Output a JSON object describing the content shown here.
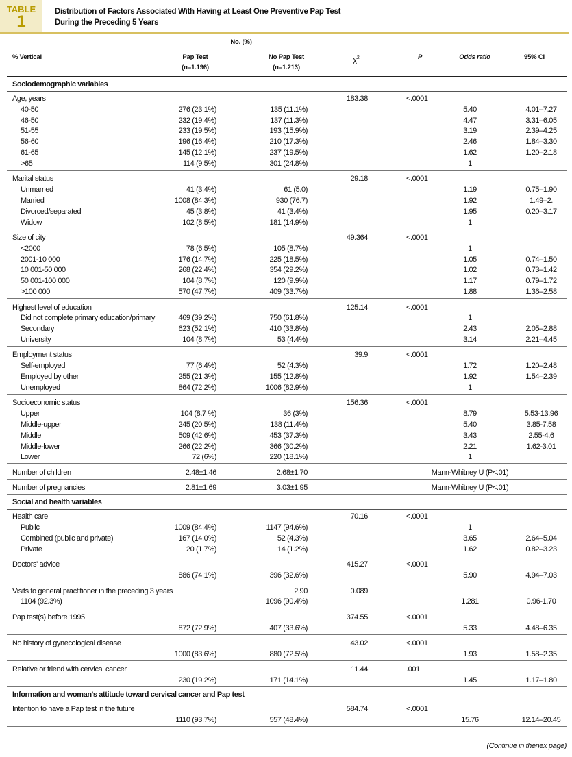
{
  "header": {
    "table_label": "TABLE",
    "table_number": "1",
    "title": [
      "Distribution of Factors Associated With Having at Least One Preventive Pap Test",
      "During the Preceding 5 Years"
    ]
  },
  "table": {
    "columns": {
      "group": "No. (%)",
      "variable": "% Vertical",
      "pap": [
        "Pap Test",
        "(n=1.196)"
      ],
      "nopap": [
        "No Pap Test",
        "(n=1.213)"
      ],
      "chi": "χ",
      "chi_sup": "2",
      "p": "P",
      "or": "Odds ratio",
      "ci": "95% CI"
    },
    "blocks": [
      {
        "section": "Sociodemographic variables"
      },
      {
        "rows": [
          [
            "Age, years",
            null,
            null,
            "183.38",
            "<.0001",
            null,
            null
          ],
          [
            "40-50",
            "276 (23.1%)",
            "135 (11.1%)",
            null,
            null,
            "5.40",
            "4.01–7.27"
          ],
          [
            "46-50",
            "232 (19.4%)",
            "137 (11.3%)",
            null,
            null,
            "4.47",
            "3.31–6.05"
          ],
          [
            "51-55",
            "233 (19.5%)",
            "193 (15.9%)",
            null,
            null,
            "3.19",
            "2.39–4.25"
          ],
          [
            "56-60",
            "196 (16.4%)",
            "210 (17.3%)",
            null,
            null,
            "2.46",
            "1.84–3.30"
          ],
          [
            "61-65",
            "145 (12.1%)",
            "237 (19.5%)",
            null,
            null,
            "1.62",
            "1.20–2.18"
          ],
          [
            ">65",
            "114 (9.5%)",
            "301 (24.8%)",
            null,
            null,
            "1",
            null
          ]
        ]
      },
      {
        "rows": [
          [
            "Marital status",
            null,
            null,
            "29.18",
            "<.0001",
            null,
            null
          ],
          [
            "Unmarried",
            "41 (3.4%)",
            "61 (5.0)",
            null,
            null,
            "1.19",
            "0.75–1.90"
          ],
          [
            "Married",
            "1008 (84.3%)",
            "930 (76.7)",
            null,
            null,
            "1.92",
            "1.49–2."
          ],
          [
            "Divorced/separated",
            "45 (3.8%)",
            "41 (3.4%)",
            null,
            null,
            "1.95",
            "0.20–3.17"
          ],
          [
            "Widow",
            "102 (8.5%)",
            "181 (14.9%)",
            null,
            null,
            "1",
            null
          ]
        ]
      },
      {
        "rows": [
          [
            "Size of city",
            null,
            null,
            "49.364",
            "<.0001",
            null,
            null
          ],
          [
            "<2000",
            "78 (6.5%)",
            "105 (8.7%)",
            null,
            null,
            "1",
            null
          ],
          [
            "2001-10 000",
            "176 (14.7%)",
            "225 (18.5%)",
            null,
            null,
            "1.05",
            "0.74–1.50"
          ],
          [
            "10 001-50 000",
            "268 (22.4%)",
            "354 (29.2%)",
            null,
            null,
            "1.02",
            "0.73–1.42"
          ],
          [
            "50 001-100 000",
            "104 (8.7%)",
            "120 (9.9%)",
            null,
            null,
            "1.17",
            "0.79–1.72"
          ],
          [
            ">100 000",
            "570 (47.7%)",
            "409 (33.7%)",
            null,
            null,
            "1.88",
            "1.36–2.58"
          ]
        ]
      },
      {
        "rows": [
          [
            "Highest level of education",
            null,
            null,
            "125.14",
            "<.0001",
            null,
            null
          ],
          [
            "Did not complete primary education/primary",
            "469 (39.2%)",
            "750 (61.8%)",
            null,
            null,
            "1",
            null
          ],
          [
            "Secondary",
            "623 (52.1%)",
            "410 (33.8%)",
            null,
            null,
            "2.43",
            "2.05–2.88"
          ],
          [
            "University",
            "104 (8.7%)",
            "53 (4.4%)",
            null,
            null,
            "3.14",
            "2.21–4.45"
          ]
        ]
      },
      {
        "rows": [
          [
            "Employment status",
            null,
            null,
            "39.9",
            "<.0001",
            null,
            null
          ],
          [
            "Self-employed",
            "77 (6.4%)",
            "52 (4.3%)",
            null,
            null,
            "1.72",
            "1.20–2.48"
          ],
          [
            "Employed by other",
            "255 (21.3%)",
            "155 (12.8%)",
            null,
            null,
            "1.92",
            "1.54–2.39"
          ],
          [
            "Unemployed",
            "864 (72.2%)",
            "1006 (82.9%)",
            null,
            null,
            "1",
            null
          ]
        ]
      },
      {
        "rows": [
          [
            "Socioeconomic status",
            null,
            null,
            "156.36",
            "<.0001",
            null,
            null
          ],
          [
            "Upper",
            "104 (8.7 %)",
            "36 (3%)",
            null,
            null,
            "8.79",
            "5.53-13.96"
          ],
          [
            "Middle-upper",
            "245 (20.5%)",
            "138 (11.4%)",
            null,
            null,
            "5.40",
            "3.85-7.58"
          ],
          [
            "Middle",
            "509 (42.6%)",
            "453 (37.3%)",
            null,
            null,
            "3.43",
            "2.55-4.6"
          ],
          [
            "Middle-lower",
            "266 (22.2%)",
            "366 (30.2%)",
            null,
            null,
            "2.21",
            "1.62-3.01"
          ],
          [
            "Lower",
            "72 (6%)",
            "220 (18.1%)",
            null,
            null,
            "1",
            null
          ]
        ]
      },
      {
        "rows": [
          [
            "Number of children",
            "2.48±1.46",
            "2.68±1.70",
            null,
            null,
            "Mann-Whitney U (P<.01)",
            null
          ]
        ]
      },
      {
        "rows": [
          [
            "Number of pregnancies",
            "2.81±1.69",
            "3.03±1.95",
            null,
            null,
            "Mann-Whitney U (P<.01)",
            null
          ]
        ]
      },
      {
        "section": "Social and health variables"
      },
      {
        "rows": [
          [
            "Health care",
            null,
            null,
            "70.16",
            "<.0001",
            null,
            null
          ],
          [
            "Public",
            "1009 (84.4%)",
            "1147 (94.6%)",
            null,
            null,
            "1",
            null
          ],
          [
            "Combined (public and private)",
            "167 (14.0%)",
            "52 (4.3%)",
            null,
            null,
            "3.65",
            "2.64–5.04"
          ],
          [
            "Private",
            "20 (1.7%)",
            "14 (1.2%)",
            null,
            null,
            "1.62",
            "0.82–3.23"
          ]
        ]
      },
      {
        "rows": [
          [
            "Doctors' advice",
            null,
            null,
            "415.27",
            "<.0001",
            null,
            null
          ],
          [
            null,
            "886 (74.1%)",
            "396 (32.6%)",
            null,
            null,
            "5.90",
            "4.94–7.03"
          ]
        ]
      },
      {
        "rows": [
          [
            "Visits to general practitioner in the preceding 3 years",
            null,
            "2.90",
            "0.089",
            null,
            null,
            null
          ],
          [
            "1104 (92.3%)",
            null,
            "1096 (90.4%)",
            null,
            null,
            "1.281",
            "0.96-1.70"
          ]
        ]
      },
      {
        "rows": [
          [
            "Pap test(s) before 1995",
            null,
            null,
            "374.55",
            "<.0001",
            null,
            null
          ],
          [
            null,
            "872 (72.9%)",
            "407 (33.6%)",
            null,
            null,
            "5.33",
            "4.48–6.35"
          ]
        ]
      },
      {
        "rows": [
          [
            "No history of gynecological disease",
            null,
            null,
            "43.02",
            "<.0001",
            null,
            null
          ],
          [
            null,
            "1000 (83.6%)",
            "880 (72.5%)",
            null,
            null,
            "1.93",
            "1.58–2.35"
          ]
        ]
      },
      {
        "rows": [
          [
            "Relative or friend with cervical cancer",
            null,
            null,
            "11.44",
            ".001",
            null,
            null
          ],
          [
            null,
            "230 (19.2%)",
            "171 (14.1%)",
            null,
            null,
            "1.45",
            "1.17–1.80"
          ]
        ]
      },
      {
        "section": "Information and woman's attitude toward cervical cancer and Pap test"
      },
      {
        "rows": [
          [
            "Intention to have a Pap test in the future",
            null,
            null,
            "584.74",
            "<.0001",
            null,
            null
          ],
          [
            null,
            "1110 (93.7%)",
            "557 (48.4%)",
            null,
            null,
            "15.76",
            "12.14–20.45"
          ]
        ]
      }
    ]
  },
  "footer": "(Continue in thenex page)"
}
